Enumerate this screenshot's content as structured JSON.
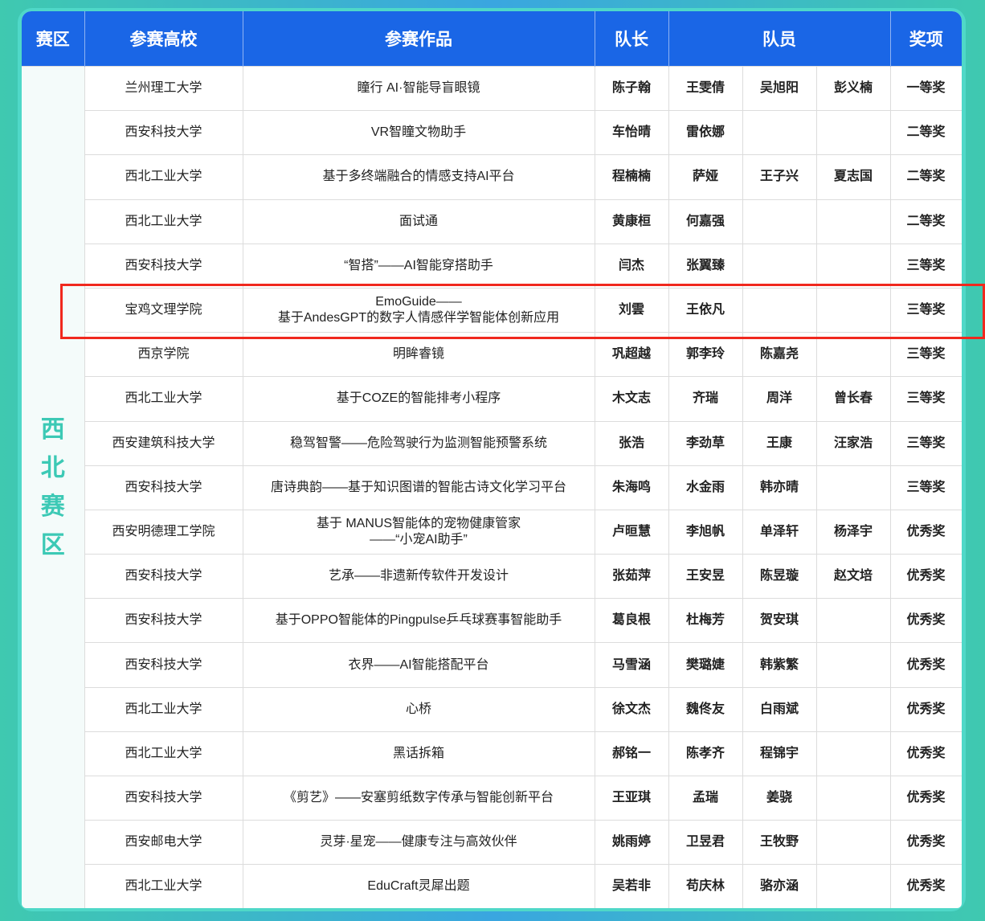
{
  "header": {
    "region": "赛区",
    "school": "参赛高校",
    "work": "参赛作品",
    "leader": "队长",
    "members": "队员",
    "award": "奖项"
  },
  "region": "西\n北\n赛\n区",
  "colors": {
    "header_bg": "#1a66e6",
    "region_text": "#3cc9b5",
    "highlight": "#f0281e",
    "frame": "#4fd8c8"
  },
  "highlighted_row_index": 5,
  "rows": [
    {
      "school": "兰州理工大学",
      "work": "瞳行 AI·智能导盲眼镜",
      "leader": "陈子翰",
      "members": [
        "王雯倩",
        "吴旭阳",
        "彭义楠"
      ],
      "award": "一等奖"
    },
    {
      "school": "西安科技大学",
      "work": "VR智瞳文物助手",
      "leader": "车怡晴",
      "members": [
        "雷依娜",
        "",
        ""
      ],
      "award": "二等奖"
    },
    {
      "school": "西北工业大学",
      "work": "基于多终端融合的情感支持AI平台",
      "leader": "程楠楠",
      "members": [
        "萨娅",
        "王子兴",
        "夏志国"
      ],
      "award": "二等奖"
    },
    {
      "school": "西北工业大学",
      "work": "面试通",
      "leader": "黄康桓",
      "members": [
        "何嘉强",
        "",
        ""
      ],
      "award": "二等奖"
    },
    {
      "school": "西安科技大学",
      "work": "“智搭”——AI智能穿搭助手",
      "leader": "闫杰",
      "members": [
        "张翼臻",
        "",
        ""
      ],
      "award": "三等奖"
    },
    {
      "school": "宝鸡文理学院",
      "work": "EmoGuide——\n基于AndesGPT的数字人情感伴学智能体创新应用",
      "leader": "刘雲",
      "members": [
        "王依凡",
        "",
        ""
      ],
      "award": "三等奖"
    },
    {
      "school": "西京学院",
      "work": "明眸睿镜",
      "leader": "巩超越",
      "members": [
        "郭李玲",
        "陈嘉尧",
        ""
      ],
      "award": "三等奖"
    },
    {
      "school": "西北工业大学",
      "work": "基于COZE的智能排考小程序",
      "leader": "木文志",
      "members": [
        "齐瑞",
        "周洋",
        "曾长春"
      ],
      "award": "三等奖"
    },
    {
      "school": "西安建筑科技大学",
      "work": "稳驾智警——危险驾驶行为监测智能预警系统",
      "leader": "张浩",
      "members": [
        "李劲草",
        "王康",
        "汪家浩"
      ],
      "award": "三等奖"
    },
    {
      "school": "西安科技大学",
      "work": "唐诗典韵——基于知识图谱的智能古诗文化学习平台",
      "leader": "朱海鸣",
      "members": [
        "水金雨",
        "韩亦晴",
        ""
      ],
      "award": "三等奖"
    },
    {
      "school": "西安明德理工学院",
      "work": "基于 MANUS智能体的宠物健康管家\n——“小宠AI助手”",
      "leader": "卢晅慧",
      "members": [
        "李旭帆",
        "单泽轩",
        "杨泽宇"
      ],
      "award": "优秀奖"
    },
    {
      "school": "西安科技大学",
      "work": "艺承——非遗新传软件开发设计",
      "leader": "张茹萍",
      "members": [
        "王安昱",
        "陈昱璇",
        "赵文培"
      ],
      "award": "优秀奖"
    },
    {
      "school": "西安科技大学",
      "work": "基于OPPO智能体的Pingpulse乒乓球赛事智能助手",
      "leader": "葛良根",
      "members": [
        "杜梅芳",
        "贺安琪",
        ""
      ],
      "award": "优秀奖"
    },
    {
      "school": "西安科技大学",
      "work": "衣界——AI智能搭配平台",
      "leader": "马雪涵",
      "members": [
        "樊璐婕",
        "韩紫繁",
        ""
      ],
      "award": "优秀奖"
    },
    {
      "school": "西北工业大学",
      "work": "心桥",
      "leader": "徐文杰",
      "members": [
        "魏佟友",
        "白雨斌",
        ""
      ],
      "award": "优秀奖"
    },
    {
      "school": "西北工业大学",
      "work": "黑话拆箱",
      "leader": "郝铭一",
      "members": [
        "陈孝齐",
        "程锦宇",
        ""
      ],
      "award": "优秀奖"
    },
    {
      "school": "西安科技大学",
      "work": "《剪艺》——安塞剪纸数字传承与智能创新平台",
      "leader": "王亚琪",
      "members": [
        "孟瑞",
        "姜骁",
        ""
      ],
      "award": "优秀奖"
    },
    {
      "school": "西安邮电大学",
      "work": "灵芽·星宠——健康专注与高效伙伴",
      "leader": "姚雨婷",
      "members": [
        "卫昱君",
        "王牧野",
        ""
      ],
      "award": "优秀奖"
    },
    {
      "school": "西北工业大学",
      "work": "EduCraft灵犀出题",
      "leader": "吴若非",
      "members": [
        "苟庆林",
        "骆亦涵",
        ""
      ],
      "award": "优秀奖"
    }
  ]
}
